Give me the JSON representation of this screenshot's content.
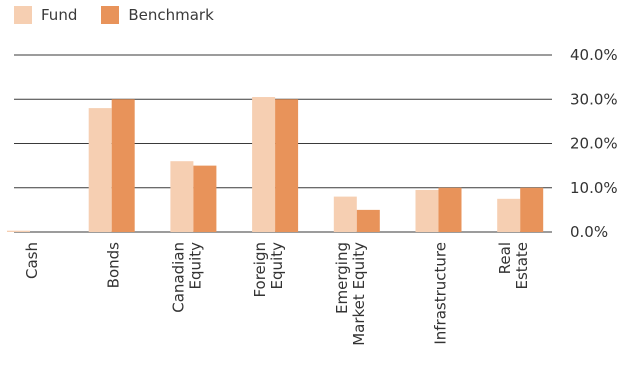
{
  "chart_data": {
    "type": "bar",
    "categories": [
      [
        "Cash"
      ],
      [
        "Bonds"
      ],
      [
        "Canadian",
        "Equity"
      ],
      [
        "Foreign",
        "Equity"
      ],
      [
        "Emerging",
        "Market Equity"
      ],
      [
        "Infrastructure"
      ],
      [
        "Real",
        "Estate"
      ]
    ],
    "series": [
      {
        "name": "Fund",
        "color": "#f6cfb2",
        "values": [
          0.3,
          28.0,
          16.0,
          30.5,
          8.0,
          9.5,
          7.5
        ]
      },
      {
        "name": "Benchmark",
        "color": "#e8935a",
        "values": [
          0.0,
          30.0,
          15.0,
          30.0,
          5.0,
          10.0,
          10.0
        ]
      }
    ],
    "yticks": [
      "0.0%",
      "10.0%",
      "20.0%",
      "30.0%",
      "40.0%"
    ],
    "ylim": [
      0,
      40
    ],
    "legend": "top-left",
    "grid": true
  }
}
